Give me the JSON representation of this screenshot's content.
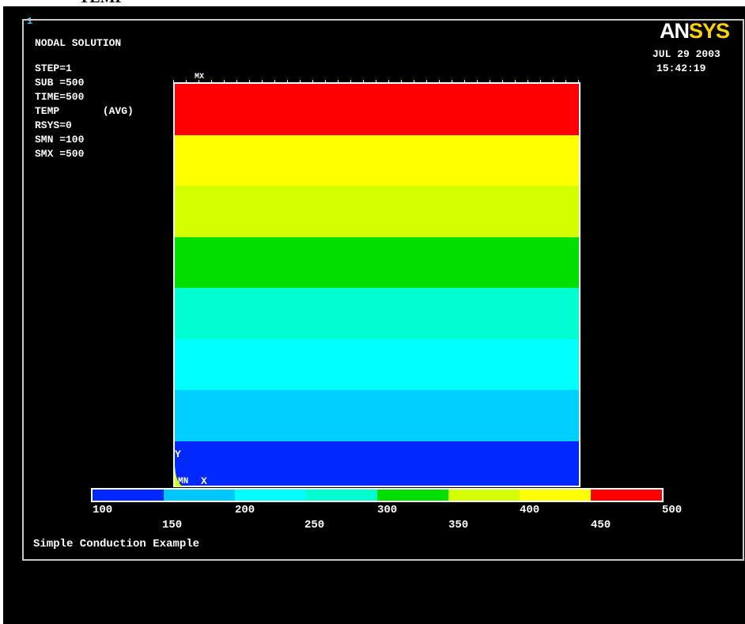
{
  "window": {
    "number": "1",
    "top_caption": "TEMP"
  },
  "info": {
    "title": "NODAL SOLUTION",
    "lines": [
      "STEP=1",
      "SUB =500",
      "TIME=500",
      "TEMP       (AVG)",
      "RSYS=0",
      "SMN =100",
      "SMX =500"
    ]
  },
  "logo": {
    "an": "AN",
    "sys": "SYS",
    "name": "ANSYS"
  },
  "datetime": {
    "date": "JUL 29 2003",
    "time": "15:42:19"
  },
  "plot": {
    "max_marker": "MX",
    "min_marker": "MN",
    "axis_y": "Y",
    "axis_x": "X",
    "bands_top_to_bottom": [
      "#ff0000",
      "#ffff00",
      "#d4ff00",
      "#00e000",
      "#00ffd0",
      "#00ffff",
      "#00d0ff",
      "#0028ff"
    ],
    "band_fraction": [
      0.127,
      0.127,
      0.127,
      0.127,
      0.127,
      0.127,
      0.127,
      0.111
    ]
  },
  "legend": {
    "colors": [
      "#0028ff",
      "#00c8ff",
      "#00ffff",
      "#00ffd0",
      "#00e000",
      "#d4ff00",
      "#ffff00",
      "#ff0000"
    ],
    "labels_upper": [
      "100",
      "200",
      "300",
      "400",
      "500"
    ],
    "labels_lower": [
      "150",
      "250",
      "350",
      "450"
    ]
  },
  "caption": "Simple Conduction Example"
}
